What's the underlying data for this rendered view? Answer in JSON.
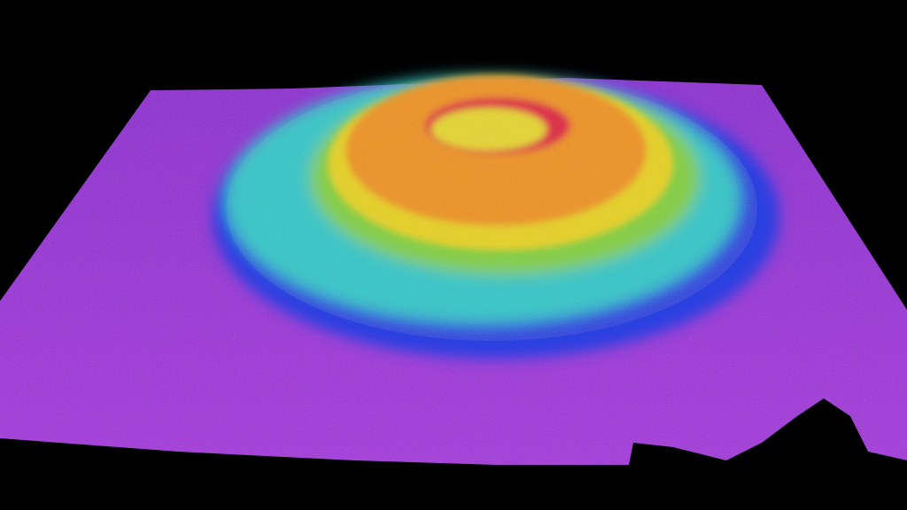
{
  "scene": {
    "background": "#000000",
    "colors": {
      "seafloor": "#9b2fd6",
      "seafloor_dark": "#7a1fc0",
      "deep_blue": "#2b3fe0",
      "cyan": "#2fc6c8",
      "green": "#7fcf3a",
      "yellow": "#e8d21e",
      "orange": "#f0901e",
      "red": "#e0203a",
      "crater": "#e6d62a"
    }
  }
}
